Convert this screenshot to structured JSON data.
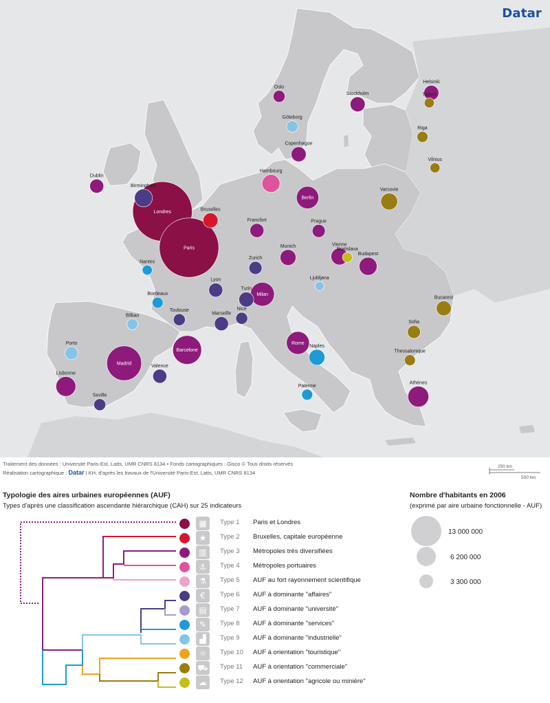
{
  "brand": "Datar",
  "credits": {
    "line1": "Traitement des données : Université Paris-Est, Latts, UMR CNRS 8134 • Fonds cartographiques : Gisco © Tous droits réservés",
    "line2_prefix": "Réalisation cartographique :",
    "line2_brand": "Datar",
    "line2_suffix": "| KH, d'après les travaux de l'Université Paris-Est, Latts, UMR CNRS 8134"
  },
  "scale": {
    "short": "250 km",
    "long": "500 km"
  },
  "legend": {
    "title": "Typologie des aires urbaines européennes (AUF)",
    "subtitle": "Types d'après une classification ascendante hiérarchique (CAH) sur 25 indicateurs",
    "types": [
      {
        "label": "Type 1",
        "desc": "Paris et Londres",
        "color": "#8b1045",
        "icon": "building-icon",
        "glyph": "▦"
      },
      {
        "label": "Type 2",
        "desc": "Bruxelles, capitale européenne",
        "color": "#d7152e",
        "icon": "stars-icon",
        "glyph": "★"
      },
      {
        "label": "Type 3",
        "desc": "Métropoles très diversifiées",
        "color": "#8e1a7c",
        "icon": "city-icon",
        "glyph": "▥"
      },
      {
        "label": "Type 4",
        "desc": "Métropoles portuaires",
        "color": "#e0529a",
        "icon": "anchor-icon",
        "glyph": "⚓"
      },
      {
        "label": "Type 5",
        "desc": "AUF au fort rayonnement scientifique",
        "color": "#efa3c6",
        "icon": "flask-icon",
        "glyph": "⚗"
      },
      {
        "label": "Type 6",
        "desc": "AUF à dominante \"affaires\"",
        "color": "#4c3c86",
        "icon": "euro-icon",
        "glyph": "€"
      },
      {
        "label": "Type 7",
        "desc": "AUF à dominante \"université\"",
        "color": "#a59bd0",
        "icon": "book-icon",
        "glyph": "▤"
      },
      {
        "label": "Type 8",
        "desc": "AUF à dominante \"services\"",
        "color": "#1e9ad6",
        "icon": "tools-icon",
        "glyph": "✎"
      },
      {
        "label": "Type 9",
        "desc": "AUF à dominante \"industrielle\"",
        "color": "#85c4e8",
        "icon": "factory-icon",
        "glyph": "▟"
      },
      {
        "label": "Type 10",
        "desc": "AUF à orientation \"touristique\"",
        "color": "#f0a21a",
        "icon": "beach-icon",
        "glyph": "☼"
      },
      {
        "label": "Type 11",
        "desc": "AUF à orientation \"commerciale\"",
        "color": "#9a7d12",
        "icon": "cart-icon",
        "glyph": "⛟"
      },
      {
        "label": "Type 12",
        "desc": "AUF à orientation \"agricole ou minière\"",
        "color": "#c5bd17",
        "icon": "sheep-icon",
        "glyph": "☁"
      }
    ]
  },
  "population": {
    "title": "Nombre d'habitants en 2006",
    "subtitle": "(exprimé par aire urbaine fonctionnelle - AUF)",
    "values": [
      "13 000 000",
      "6 200 000",
      "3 300 000"
    ]
  },
  "map": {
    "sea_color": "#e6e7e9",
    "land_color": "#c8c8ca",
    "cities": [
      {
        "name": "Helsinki",
        "type": 3,
        "size": 3.0,
        "lon": 24.94,
        "lat": 60.17
      },
      {
        "name": "Oslo",
        "type": 3,
        "size": 2.4,
        "lon": 10.75,
        "lat": 59.91
      },
      {
        "name": "Stockholm",
        "type": 3,
        "size": 3.0,
        "lon": 18.07,
        "lat": 59.33
      },
      {
        "name": "Tallinn",
        "type": 11,
        "size": 2.0,
        "lon": 24.75,
        "lat": 59.44
      },
      {
        "name": "Göteborg",
        "type": 9,
        "size": 2.3,
        "lon": 11.97,
        "lat": 57.71
      },
      {
        "name": "Riga",
        "type": 11,
        "size": 2.2,
        "lon": 24.11,
        "lat": 56.95
      },
      {
        "name": "Dublin",
        "type": 3,
        "size": 2.8,
        "lon": -6.26,
        "lat": 53.35
      },
      {
        "name": "Copenhague",
        "type": 3,
        "size": 3.0,
        "lon": 12.57,
        "lat": 55.68
      },
      {
        "name": "Vilnius",
        "type": 11,
        "size": 2.0,
        "lon": 25.28,
        "lat": 54.69
      },
      {
        "name": "Birmingham",
        "type": 6,
        "size": 3.6,
        "lon": -1.9,
        "lat": 52.49
      },
      {
        "name": "Hambourg",
        "type": 4,
        "size": 3.6,
        "lon": 9.99,
        "lat": 53.55
      },
      {
        "name": "Londres",
        "type": 1,
        "size": 12.0,
        "lon": -0.13,
        "lat": 51.51
      },
      {
        "name": "Berlin",
        "type": 3,
        "size": 4.5,
        "lon": 13.4,
        "lat": 52.52
      },
      {
        "name": "Varsovie",
        "type": 11,
        "size": 3.4,
        "lon": 21.01,
        "lat": 52.23
      },
      {
        "name": "Bruxelles",
        "type": 2,
        "size": 3.0,
        "lon": 4.35,
        "lat": 50.85
      },
      {
        "name": "Francfort",
        "type": 3,
        "size": 2.8,
        "lon": 8.68,
        "lat": 50.11
      },
      {
        "name": "Paris",
        "type": 1,
        "size": 12.0,
        "lon": 2.35,
        "lat": 48.86
      },
      {
        "name": "Prague",
        "type": 3,
        "size": 2.6,
        "lon": 14.44,
        "lat": 50.08
      },
      {
        "name": "Munich",
        "type": 3,
        "size": 3.2,
        "lon": 11.58,
        "lat": 48.14
      },
      {
        "name": "Bratislava",
        "type": 12,
        "size": 2.0,
        "lon": 17.11,
        "lat": 48.15
      },
      {
        "name": "Nantes",
        "type": 8,
        "size": 2.0,
        "lon": -1.55,
        "lat": 47.22
      },
      {
        "name": "Vienne",
        "type": 3,
        "size": 3.4,
        "lon": 16.37,
        "lat": 48.21
      },
      {
        "name": "Zurich",
        "type": 6,
        "size": 2.6,
        "lon": 8.54,
        "lat": 47.38
      },
      {
        "name": "Budapest",
        "type": 3,
        "size": 3.6,
        "lon": 19.04,
        "lat": 47.5
      },
      {
        "name": "Lyon",
        "type": 6,
        "size": 2.8,
        "lon": 4.84,
        "lat": 45.76
      },
      {
        "name": "Bordeaux",
        "type": 8,
        "size": 2.2,
        "lon": -0.58,
        "lat": 44.84
      },
      {
        "name": "Milan",
        "type": 3,
        "size": 4.8,
        "lon": 9.19,
        "lat": 45.46
      },
      {
        "name": "Ljubljana",
        "type": 9,
        "size": 1.8,
        "lon": 14.51,
        "lat": 46.06
      },
      {
        "name": "Bucarest",
        "type": 11,
        "size": 3.0,
        "lon": 26.1,
        "lat": 44.43
      },
      {
        "name": "Bilbao",
        "type": 9,
        "size": 2.2,
        "lon": -2.93,
        "lat": 43.26
      },
      {
        "name": "Toulouse",
        "type": 6,
        "size": 2.4,
        "lon": 1.44,
        "lat": 43.6
      },
      {
        "name": "Turin",
        "type": 6,
        "size": 3.0,
        "lon": 7.69,
        "lat": 45.07
      },
      {
        "name": "Marseille",
        "type": 6,
        "size": 2.8,
        "lon": 5.37,
        "lat": 43.3
      },
      {
        "name": "Nice",
        "type": 6,
        "size": 2.4,
        "lon": 7.26,
        "lat": 43.7
      },
      {
        "name": "Sofia",
        "type": 11,
        "size": 2.6,
        "lon": 23.32,
        "lat": 42.7
      },
      {
        "name": "Porto",
        "type": 9,
        "size": 2.6,
        "lon": -8.61,
        "lat": 41.15
      },
      {
        "name": "Madrid",
        "type": 3,
        "size": 7.0,
        "lon": -3.7,
        "lat": 40.42
      },
      {
        "name": "Rome",
        "type": 3,
        "size": 4.6,
        "lon": 12.5,
        "lat": 41.9
      },
      {
        "name": "Barcelone",
        "type": 3,
        "size": 5.8,
        "lon": 2.17,
        "lat": 41.39
      },
      {
        "name": "Lisbonne",
        "type": 3,
        "size": 4.0,
        "lon": -9.14,
        "lat": 38.72
      },
      {
        "name": "Valence",
        "type": 6,
        "size": 2.8,
        "lon": -0.38,
        "lat": 39.47
      },
      {
        "name": "Thessalonique",
        "type": 11,
        "size": 2.2,
        "lon": 22.94,
        "lat": 40.64
      },
      {
        "name": "Naples",
        "type": 8,
        "size": 3.2,
        "lon": 14.27,
        "lat": 40.85
      },
      {
        "name": "Seville",
        "type": 6,
        "size": 2.4,
        "lon": -5.98,
        "lat": 37.39
      },
      {
        "name": "Palerme",
        "type": 8,
        "size": 2.2,
        "lon": 13.36,
        "lat": 38.12
      },
      {
        "name": "Athènes",
        "type": 3,
        "size": 4.2,
        "lon": 23.73,
        "lat": 37.98
      }
    ]
  }
}
